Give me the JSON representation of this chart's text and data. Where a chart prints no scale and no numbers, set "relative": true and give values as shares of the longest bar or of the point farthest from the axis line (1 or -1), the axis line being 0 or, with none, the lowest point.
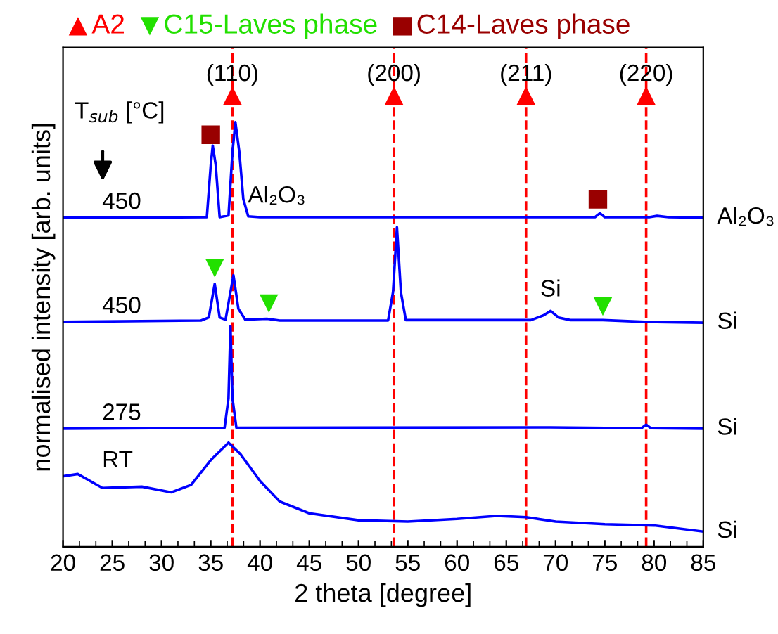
{
  "chart_data": {
    "type": "line",
    "relative": true,
    "xlabel": "2 theta [degree]",
    "ylabel": "normalised intensity [arb. units]",
    "xlim": [
      20,
      85
    ],
    "xticks": [
      20,
      25,
      30,
      35,
      40,
      45,
      50,
      55,
      60,
      65,
      70,
      75,
      80,
      85
    ],
    "grid": false,
    "legend": "top",
    "series": [
      {
        "name": "450",
        "color": "#0000ff",
        "x": [
          20,
          34.6,
          35.0,
          35.2,
          35.5,
          35.9,
          36.8,
          37.2,
          37.5,
          37.9,
          38.3,
          38.8,
          40,
          41.7,
          74,
          74.5,
          75,
          79.5,
          80.3,
          81.5,
          85
        ],
        "values": [
          0.72,
          0.721,
          0.841,
          0.885,
          0.841,
          0.721,
          0.725,
          0.87,
          0.939,
          0.87,
          0.763,
          0.723,
          0.721,
          0.721,
          0.721,
          0.73,
          0.721,
          0.721,
          0.724,
          0.721,
          0.72
        ]
      },
      {
        "name": "450",
        "color": "#0000ff",
        "x": [
          20,
          34,
          34.8,
          35.4,
          35.9,
          36.5,
          37.3,
          37.8,
          38.5,
          40.7,
          42,
          53,
          53.5,
          53.9,
          54.3,
          54.8,
          67.5,
          68.8,
          69.5,
          70.3,
          71.5,
          74.8,
          79,
          85
        ],
        "values": [
          0.481,
          0.484,
          0.491,
          0.568,
          0.491,
          0.486,
          0.588,
          0.511,
          0.486,
          0.488,
          0.484,
          0.484,
          0.549,
          0.698,
          0.549,
          0.485,
          0.485,
          0.496,
          0.506,
          0.491,
          0.485,
          0.485,
          0.481,
          0.479
        ]
      },
      {
        "name": "275",
        "color": "#0000ff",
        "x": [
          20,
          36.4,
          36.8,
          37.0,
          37.2,
          37.6,
          69.5,
          78.7,
          79.2,
          79.7,
          85
        ],
        "values": [
          0.236,
          0.238,
          0.306,
          0.471,
          0.306,
          0.238,
          0.239,
          0.237,
          0.245,
          0.237,
          0.236
        ]
      },
      {
        "name": "RT",
        "color": "#0000ff",
        "x": [
          20,
          21.5,
          24,
          28,
          31,
          33,
          35,
          36.8,
          38,
          40,
          42,
          45,
          50,
          55,
          60,
          64,
          67,
          70,
          75,
          80,
          85
        ],
        "values": [
          0.127,
          0.132,
          0.1,
          0.103,
          0.09,
          0.107,
          0.164,
          0.204,
          0.178,
          0.116,
          0.069,
          0.042,
          0.026,
          0.023,
          0.029,
          0.036,
          0.033,
          0.023,
          0.017,
          0.014,
          0.0
        ]
      },
      {
        "type": "scatter",
        "name": "A2",
        "color": "#ff0000",
        "marker": "triangle",
        "x": [
          37.2,
          53.6,
          67.0,
          79.2
        ],
        "values": [
          1.0,
          1.0,
          1.0,
          1.0
        ]
      },
      {
        "type": "scatter",
        "name": "C15-Laves phase",
        "color": "#22e000",
        "marker": "triangle_down",
        "x": [
          35.4,
          40.9,
          74.8
        ],
        "values": [
          0.604,
          0.523,
          0.516
        ]
      },
      {
        "type": "scatter",
        "name": "C14-Laves phase",
        "color": "#990000",
        "marker": "square",
        "x": [
          35.0,
          74.3
        ],
        "values": [
          0.91,
          0.762
        ]
      }
    ],
    "ref_lines": [
      {
        "axis": "x",
        "value": 37.2,
        "color": "#ff0000",
        "line_style": "dashed"
      },
      {
        "axis": "x",
        "value": 53.6,
        "color": "#ff0000",
        "line_style": "dashed"
      },
      {
        "axis": "x",
        "value": 67.0,
        "color": "#ff0000",
        "line_style": "dashed"
      },
      {
        "axis": "x",
        "value": 79.2,
        "color": "#ff0000",
        "line_style": "dashed"
      }
    ],
    "annotations": [
      "T$_{sub}$ [°C]",
      {
        "text": "(110)",
        "x": 37.2,
        "y": 1.0
      },
      {
        "text": "(200)",
        "x": 53.6,
        "y": 1.0
      },
      {
        "text": "(211)",
        "x": 67.0,
        "y": 1.0
      },
      {
        "text": "(220)",
        "x": 79.2,
        "y": 1.0
      },
      {
        "text": "Al₂O₃",
        "x": 41.7,
        "y": 0.721
      },
      {
        "text": "Si",
        "x": 69.5,
        "y": 0.506
      },
      {
        "text": "Al₂O₃",
        "x": 85,
        "y": 0.72
      },
      {
        "text": "Si",
        "x": 85,
        "y": 0.479
      },
      {
        "text": "Si",
        "x": 85,
        "y": 0.236
      },
      {
        "text": "Si",
        "x": 85,
        "y": 0.0
      }
    ]
  }
}
